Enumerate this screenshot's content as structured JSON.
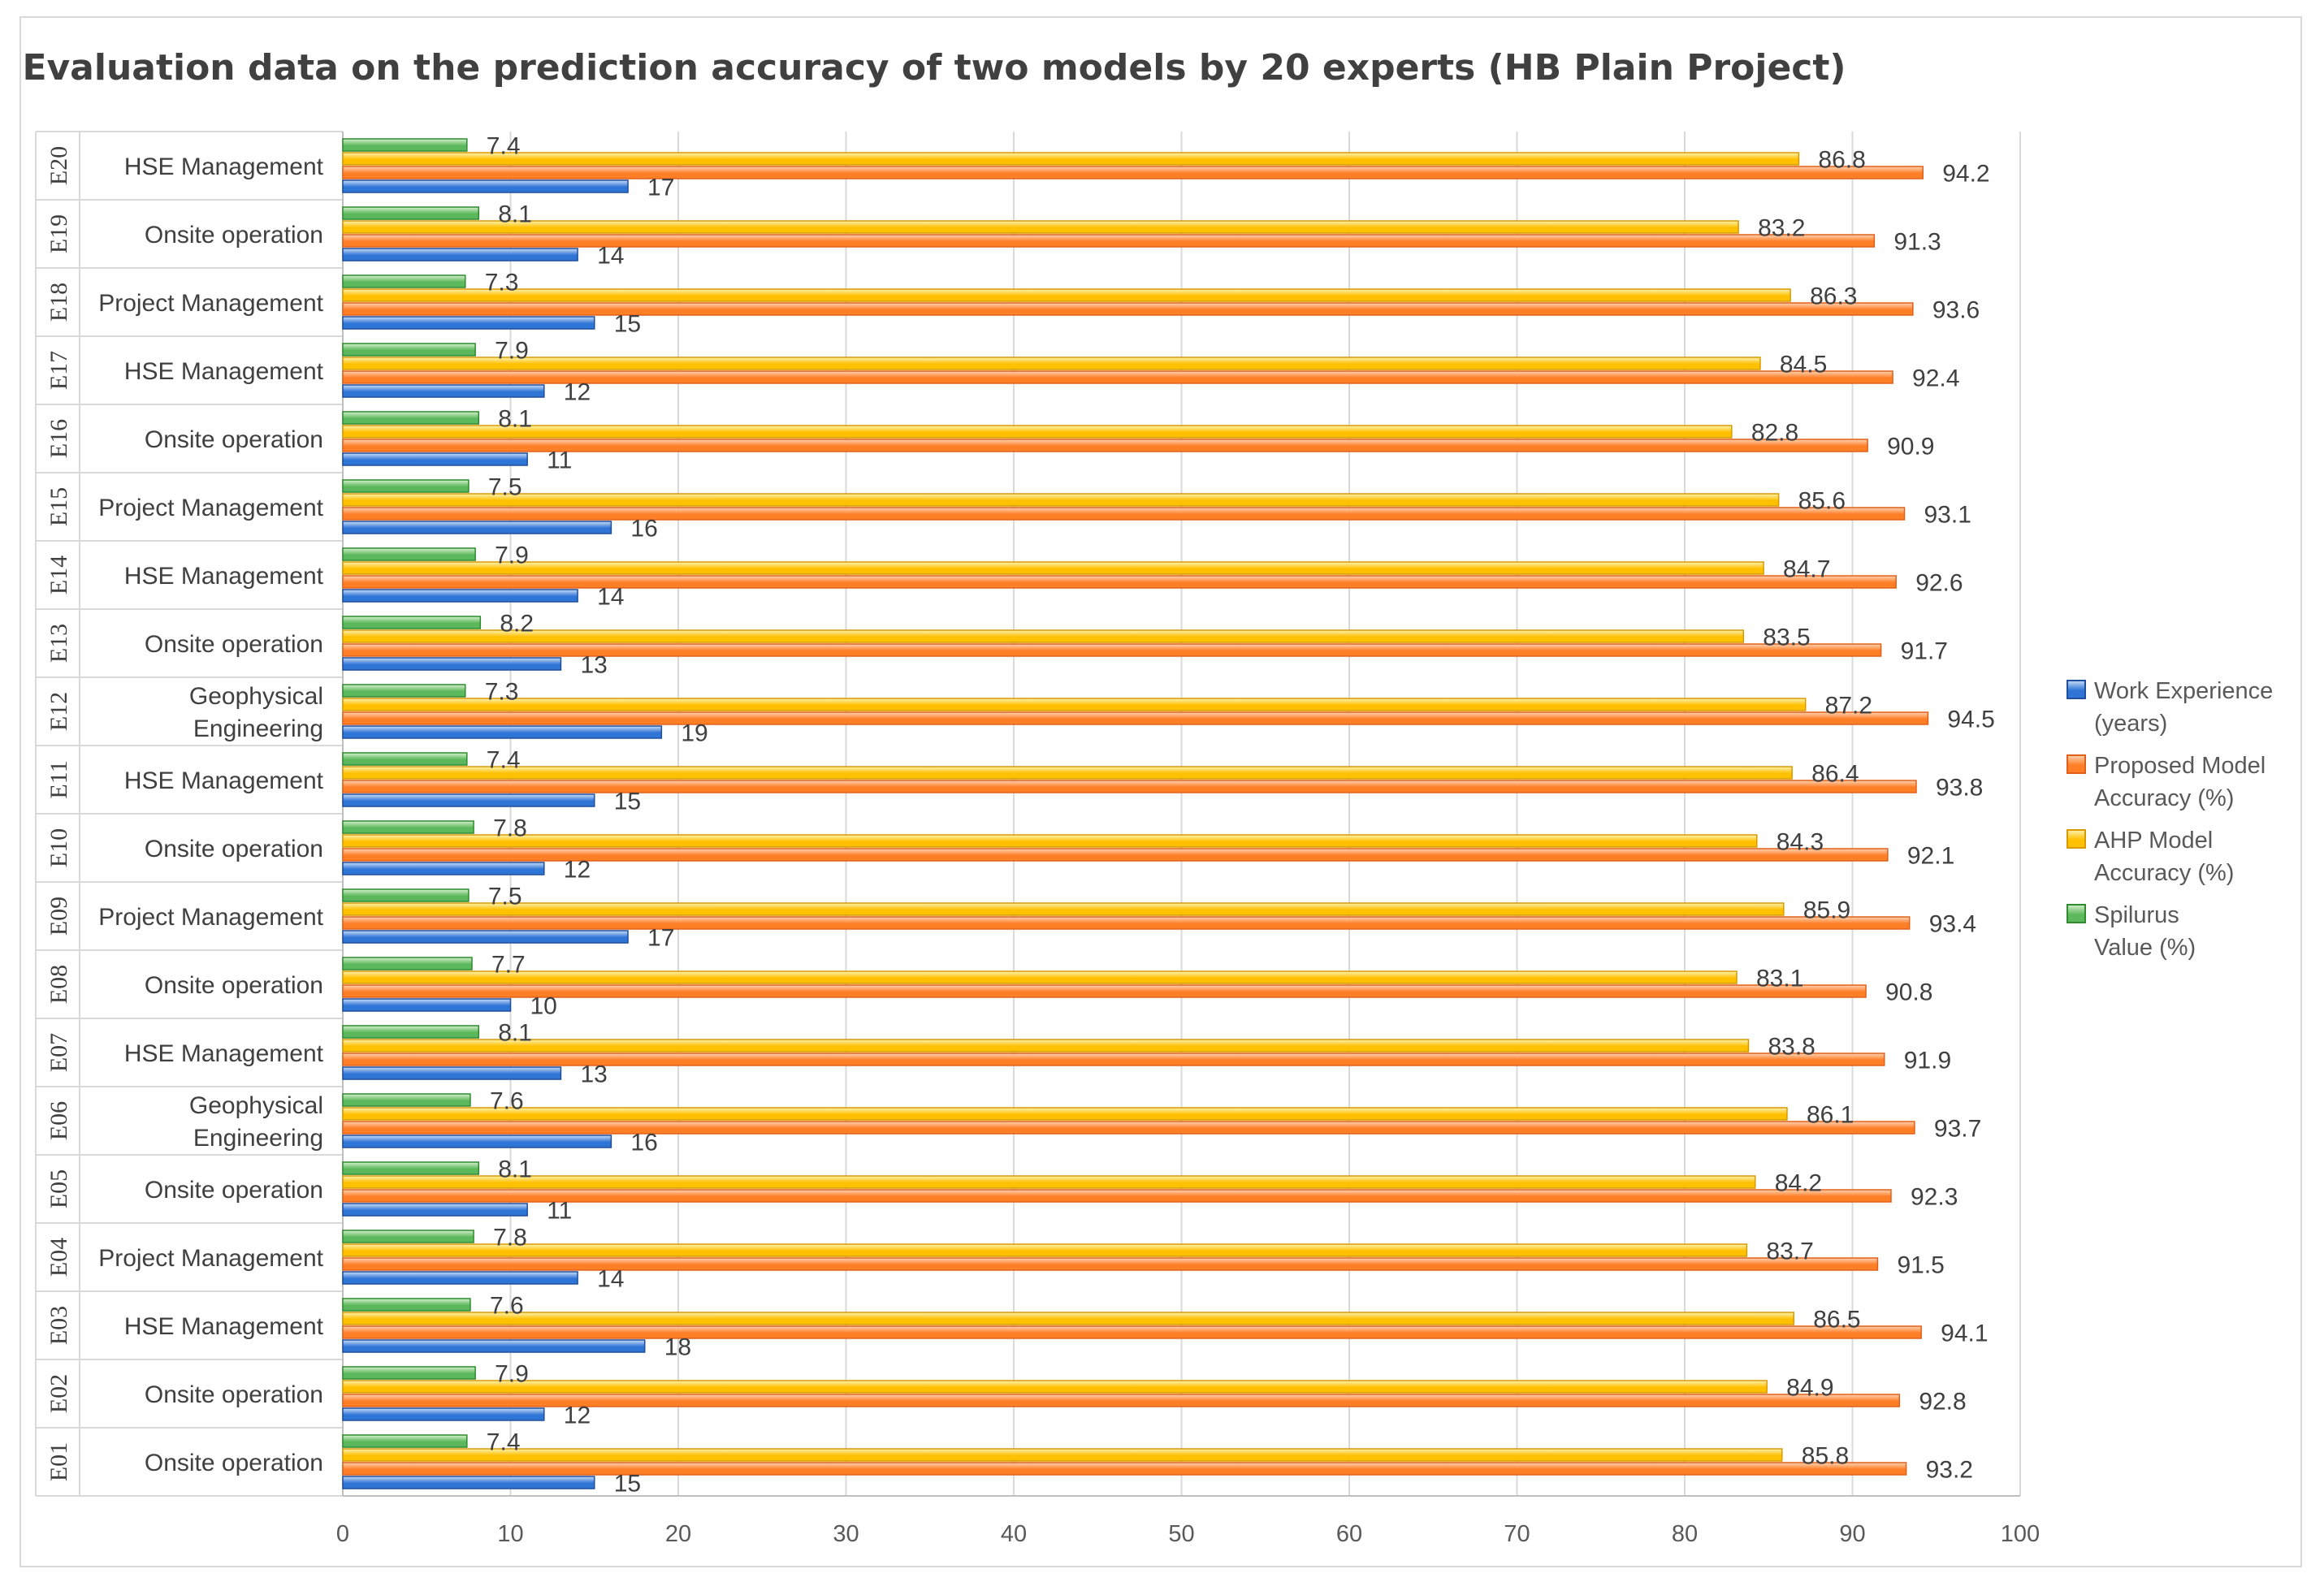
{
  "chart_data": {
    "type": "bar",
    "orientation": "horizontal",
    "title": "Evaluation data on the prediction accuracy of two models by 20 experts (HB Plain Project)",
    "xlabel": "",
    "ylabel": "",
    "xlim": [
      0,
      100
    ],
    "x_ticks": [
      0,
      10,
      20,
      30,
      40,
      50,
      60,
      70,
      80,
      90,
      100
    ],
    "grid": true,
    "legend_position": "right",
    "categories": [
      {
        "id": "E01",
        "label": [
          "Onsite operation"
        ]
      },
      {
        "id": "E02",
        "label": [
          "Onsite operation"
        ]
      },
      {
        "id": "E03",
        "label": [
          "HSE Management"
        ]
      },
      {
        "id": "E04",
        "label": [
          "Project Management"
        ]
      },
      {
        "id": "E05",
        "label": [
          "Onsite operation"
        ]
      },
      {
        "id": "E06",
        "label": [
          "Geophysical",
          "Engineering"
        ]
      },
      {
        "id": "E07",
        "label": [
          "HSE Management"
        ]
      },
      {
        "id": "E08",
        "label": [
          "Onsite operation"
        ]
      },
      {
        "id": "E09",
        "label": [
          "Project Management"
        ]
      },
      {
        "id": "E10",
        "label": [
          "Onsite operation"
        ]
      },
      {
        "id": "E11",
        "label": [
          "HSE Management"
        ]
      },
      {
        "id": "E12",
        "label": [
          "Geophysical",
          "Engineering"
        ]
      },
      {
        "id": "E13",
        "label": [
          "Onsite operation"
        ]
      },
      {
        "id": "E14",
        "label": [
          "HSE Management"
        ]
      },
      {
        "id": "E15",
        "label": [
          "Project Management"
        ]
      },
      {
        "id": "E16",
        "label": [
          "Onsite operation"
        ]
      },
      {
        "id": "E17",
        "label": [
          "HSE Management"
        ]
      },
      {
        "id": "E18",
        "label": [
          "Project Management"
        ]
      },
      {
        "id": "E19",
        "label": [
          "Onsite operation"
        ]
      },
      {
        "id": "E20",
        "label": [
          "HSE Management"
        ]
      }
    ],
    "series": [
      {
        "name": "Spilurus Value (%)",
        "legend_lines": [
          "Spilurus",
          "Value (%)"
        ],
        "fill": "#5cb85c",
        "light": "#d6f0cf",
        "stroke": "#2e8b2e",
        "values": [
          7.4,
          7.9,
          7.6,
          7.8,
          8.1,
          7.6,
          8.1,
          7.7,
          7.5,
          7.8,
          7.4,
          7.3,
          8.2,
          7.9,
          7.5,
          8.1,
          7.9,
          7.3,
          8.1,
          7.4
        ]
      },
      {
        "name": "AHP Model Accuracy (%)",
        "legend_lines": [
          "AHP Model",
          "Accuracy (%)"
        ],
        "fill": "#ffc000",
        "light": "#fff2b3",
        "stroke": "#d99a00",
        "values": [
          85.8,
          84.9,
          86.5,
          83.7,
          84.2,
          86.1,
          83.8,
          83.1,
          85.9,
          84.3,
          86.4,
          87.2,
          83.5,
          84.7,
          85.6,
          82.8,
          84.5,
          86.3,
          83.2,
          86.8
        ]
      },
      {
        "name": "Proposed Model Accuracy (%)",
        "legend_lines": [
          "Proposed Model",
          "Accuracy (%)"
        ],
        "fill": "#ff7f27",
        "light": "#ffd3b3",
        "stroke": "#e0601a",
        "values": [
          93.2,
          92.8,
          94.1,
          91.5,
          92.3,
          93.7,
          91.9,
          90.8,
          93.4,
          92.1,
          93.8,
          94.5,
          91.7,
          92.6,
          93.1,
          90.9,
          92.4,
          93.6,
          91.3,
          94.2
        ]
      },
      {
        "name": "Work Experience (years)",
        "legend_lines": [
          "Work Experience",
          "(years)"
        ],
        "fill": "#2f75d6",
        "light": "#c9ddf7",
        "stroke": "#1f4e9e",
        "values": [
          15,
          12,
          18,
          14,
          11,
          16,
          13,
          10,
          17,
          12,
          15,
          19,
          13,
          14,
          16,
          11,
          12,
          15,
          14,
          17
        ]
      }
    ]
  }
}
